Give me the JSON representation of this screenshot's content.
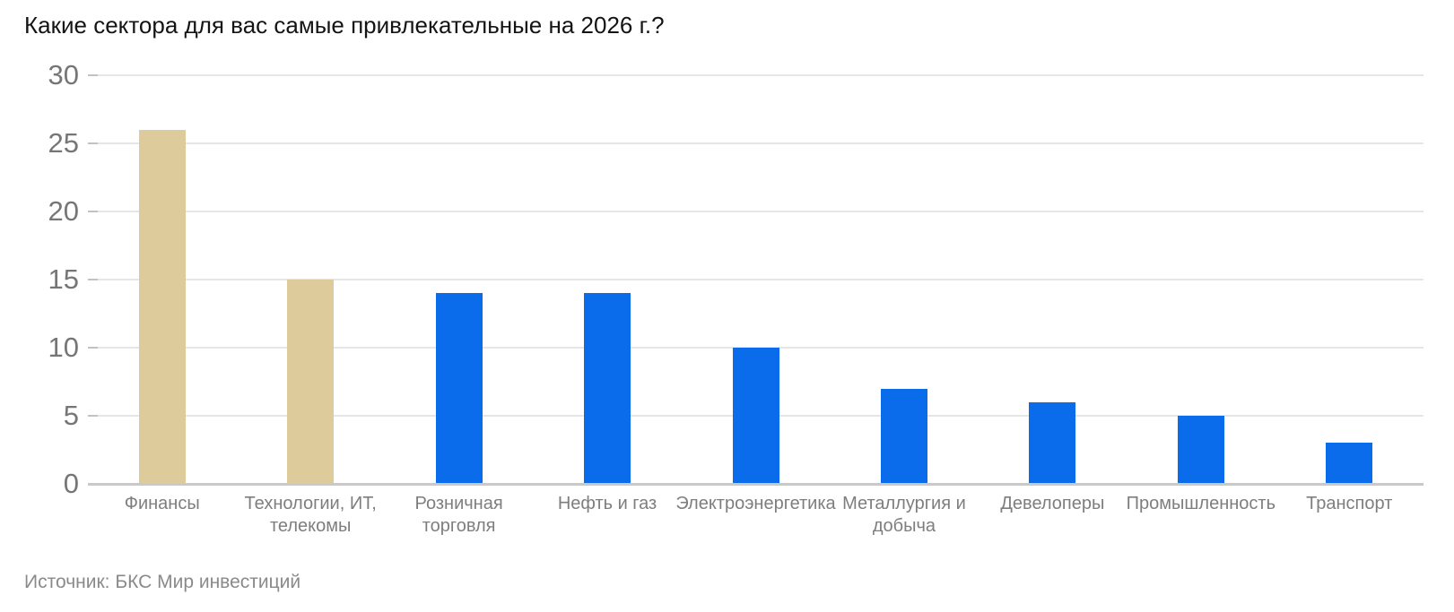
{
  "chart_data": {
    "type": "bar",
    "title": "Какие сектора для вас самые привлекательные на 2026 г.?",
    "source": "Источник: БКС Мир инвестиций",
    "categories": [
      "Финансы",
      "Технологии, ИТ, телекомы",
      "Розничная торговля",
      "Нефть и газ",
      "Электроэнергетика",
      "Металлургия и добыча",
      "Девелоперы",
      "Промышленность",
      "Транспорт"
    ],
    "values": [
      26,
      15,
      14,
      14,
      10,
      7,
      6,
      5,
      3
    ],
    "bar_colors": [
      "#DECB9B",
      "#DECB9B",
      "#0A6CEB",
      "#0A6CEB",
      "#0A6CEB",
      "#0A6CEB",
      "#0A6CEB",
      "#0A6CEB",
      "#0A6CEB"
    ],
    "colors": {
      "highlight": "#DECB9B",
      "default": "#0A6CEB",
      "gridline": "#E6E6E6",
      "axis": "#C9C9C9"
    },
    "xlabel": "",
    "ylabel": "",
    "ylim": [
      0,
      30
    ],
    "yticks": [
      0,
      5,
      10,
      15,
      20,
      25,
      30
    ],
    "grid": true,
    "legend": false
  }
}
